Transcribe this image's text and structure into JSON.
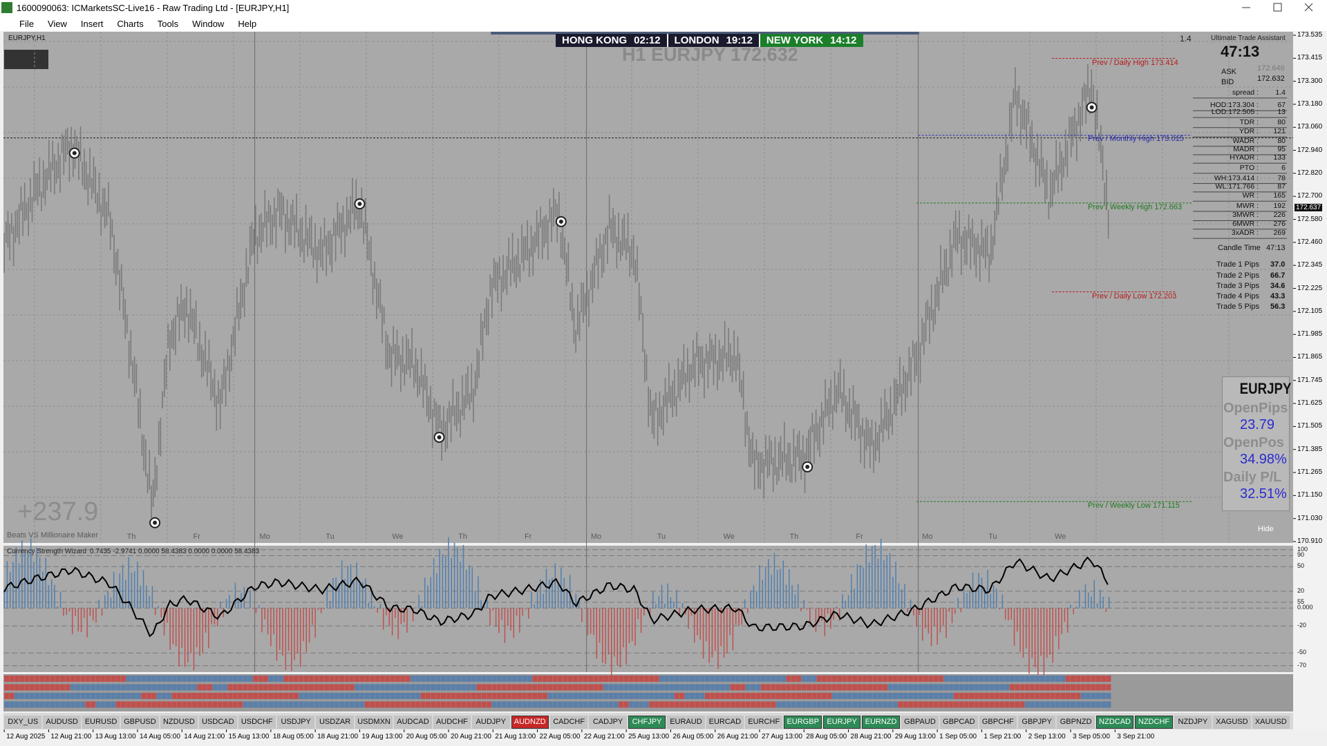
{
  "window": {
    "title": "1600090063: ICMarketsSC-Live16 - Raw Trading Ltd - [EURJPY,H1]",
    "menu": [
      "File",
      "View",
      "Insert",
      "Charts",
      "Tools",
      "Window",
      "Help"
    ]
  },
  "chart": {
    "symbol": "EURJPY,H1",
    "clocks": [
      {
        "city": "HONG KONG",
        "time": "02:12"
      },
      {
        "city": "LONDON",
        "time": "19:12"
      },
      {
        "city": "NEW YORK",
        "time": "14:12"
      }
    ],
    "headline": "H1 EURJPY 172.632",
    "spread_note": "1.4",
    "price_axis": [
      "173.535",
      "173.415",
      "173.300",
      "173.180",
      "173.060",
      "172.940",
      "172.820",
      "172.700",
      "172.580",
      "172.460",
      "172.345",
      "172.225",
      "172.105",
      "171.985",
      "171.865",
      "171.745",
      "171.625",
      "171.505",
      "171.385",
      "171.265",
      "171.150",
      "171.030",
      "170.910"
    ],
    "current_price": "172.637",
    "levels": [
      {
        "label": "Prev / Daily High 173.414",
        "color": "#b71c1c"
      },
      {
        "label": "Prev / Monthly High 173.015",
        "color": "#2828b0"
      },
      {
        "label": "Prev / Weekly High 172.663",
        "color": "#1f7a1f"
      },
      {
        "label": "Prev / Daily Low 172.203",
        "color": "#b71c1c"
      },
      {
        "label": "Prev / Weekly Low 171.115",
        "color": "#1f7a1f"
      }
    ],
    "days": [
      "Th",
      "Fr",
      "Mo",
      "Tu",
      "We",
      "Th",
      "Fr",
      "Mo",
      "Tu",
      "We",
      "Th",
      "Fr",
      "Mo",
      "Tu",
      "We"
    ],
    "dates": [
      "12 Aug 2025",
      "12 Aug 21:00",
      "13 Aug 13:00",
      "14 Aug 05:00",
      "14 Aug 21:00",
      "15 Aug 13:00",
      "18 Aug 05:00",
      "18 Aug 21:00",
      "19 Aug 13:00",
      "20 Aug 05:00",
      "20 Aug 21:00",
      "21 Aug 13:00",
      "22 Aug 05:00",
      "22 Aug 21:00",
      "25 Aug 13:00",
      "26 Aug 05:00",
      "26 Aug 21:00",
      "27 Aug 13:00",
      "28 Aug 05:00",
      "28 Aug 21:00",
      "29 Aug 13:00",
      "1 Sep 05:00",
      "1 Sep 21:00",
      "2 Sep 13:00",
      "3 Sep 05:00",
      "3 Sep 21:00"
    ],
    "profit": "+237.9",
    "caption": "Beats VS Millionaire Maker",
    "hide_button": "Hide"
  },
  "assistant": {
    "title": "Ultimate Trade Assistant",
    "timer": "47:13",
    "quotes": [
      {
        "label": "ASK",
        "value": "172.646"
      },
      {
        "label": "BID",
        "value": "172.632"
      }
    ],
    "stats": [
      {
        "label": "spread :",
        "value": "1.4"
      },
      {
        "label": "HOD:173.304 :",
        "value": "67"
      },
      {
        "label": "LOD:172.505 :",
        "value": "13"
      },
      {
        "label": "TDR :",
        "value": "80"
      },
      {
        "label": "YDR :",
        "value": "121"
      },
      {
        "label": "WADR :",
        "value": "80"
      },
      {
        "label": "MADR :",
        "value": "95"
      },
      {
        "label": "HYADR :",
        "value": "133"
      },
      {
        "label": "PTO :",
        "value": "6"
      },
      {
        "label": "WH:173.414 :",
        "value": "78"
      },
      {
        "label": "WL:171.766 :",
        "value": "87"
      },
      {
        "label": "WR :",
        "value": "165"
      },
      {
        "label": "MWR :",
        "value": "192"
      },
      {
        "label": "3MWR :",
        "value": "226"
      },
      {
        "label": "6MWR :",
        "value": "276"
      },
      {
        "label": "3xADR :",
        "value": "269"
      }
    ],
    "candle_time": {
      "label": "Candle Time",
      "value": "47:13"
    },
    "trades": [
      {
        "label": "Trade 1 Pips",
        "value": "37.0"
      },
      {
        "label": "Trade 2 Pips",
        "value": "66.7"
      },
      {
        "label": "Trade 3 Pips",
        "value": "34.6"
      },
      {
        "label": "Trade 4 Pips",
        "value": "43.3"
      },
      {
        "label": "Trade 5 Pips",
        "value": "56.3"
      }
    ]
  },
  "position_box": {
    "symbol": "EURJPY",
    "items": [
      {
        "label": "OpenPips",
        "value": "23.79"
      },
      {
        "label": "OpenPos",
        "value": "34.98%"
      },
      {
        "label": "Daily P/L",
        "value": "32.51%"
      }
    ]
  },
  "indicator": {
    "name": "Currency Strength Wizard",
    "readout": "0.7435 -2.9741 0.0000 58.4383 0.0000 0.0000 58.4383",
    "axis": [
      "100",
      "90",
      "50",
      "20",
      "55",
      "0.000",
      "-20",
      "-50",
      "-70"
    ]
  },
  "pairs": [
    {
      "label": "DXY_US",
      "color": "#c4c4c4"
    },
    {
      "label": "AUDUSD",
      "color": "#c4c4c4"
    },
    {
      "label": "EURUSD",
      "color": "#c4c4c4"
    },
    {
      "label": "GBPUSD",
      "color": "#c4c4c4"
    },
    {
      "label": "NZDUSD",
      "color": "#c4c4c4"
    },
    {
      "label": "USDCAD",
      "color": "#c4c4c4"
    },
    {
      "label": "USDCHF",
      "color": "#c4c4c4"
    },
    {
      "label": "USDJPY",
      "color": "#c4c4c4"
    },
    {
      "label": "USDZAR",
      "color": "#c4c4c4"
    },
    {
      "label": "USDMXN",
      "color": "#c4c4c4"
    },
    {
      "label": "AUDCAD",
      "color": "#c4c4c4"
    },
    {
      "label": "AUDCHF",
      "color": "#c4c4c4"
    },
    {
      "label": "AUDJPY",
      "color": "#c4c4c4"
    },
    {
      "label": "AUDNZD",
      "color": "#c62828"
    },
    {
      "label": "CADCHF",
      "color": "#c4c4c4"
    },
    {
      "label": "CADJPY",
      "color": "#c4c4c4"
    },
    {
      "label": "CHFJPY",
      "color": "#2e8b57"
    },
    {
      "label": "EURAUD",
      "color": "#c4c4c4"
    },
    {
      "label": "EURCAD",
      "color": "#c4c4c4"
    },
    {
      "label": "EURCHF",
      "color": "#c4c4c4"
    },
    {
      "label": "EURGBP",
      "color": "#2e8b57"
    },
    {
      "label": "EURJPY",
      "color": "#2e8b57"
    },
    {
      "label": "EURNZD",
      "color": "#2e8b57"
    },
    {
      "label": "GBPAUD",
      "color": "#c4c4c4"
    },
    {
      "label": "GBPCAD",
      "color": "#c4c4c4"
    },
    {
      "label": "GBPCHF",
      "color": "#c4c4c4"
    },
    {
      "label": "GBPJPY",
      "color": "#c4c4c4"
    },
    {
      "label": "GBPNZD",
      "color": "#c4c4c4"
    },
    {
      "label": "NZDCAD",
      "color": "#2e8b57"
    },
    {
      "label": "NZDCHF",
      "color": "#2e8b57"
    },
    {
      "label": "NZDJPY",
      "color": "#c4c4c4"
    },
    {
      "label": "XAGUSD",
      "color": "#c4c4c4"
    },
    {
      "label": "XAUUSD",
      "color": "#c4c4c4"
    }
  ]
}
